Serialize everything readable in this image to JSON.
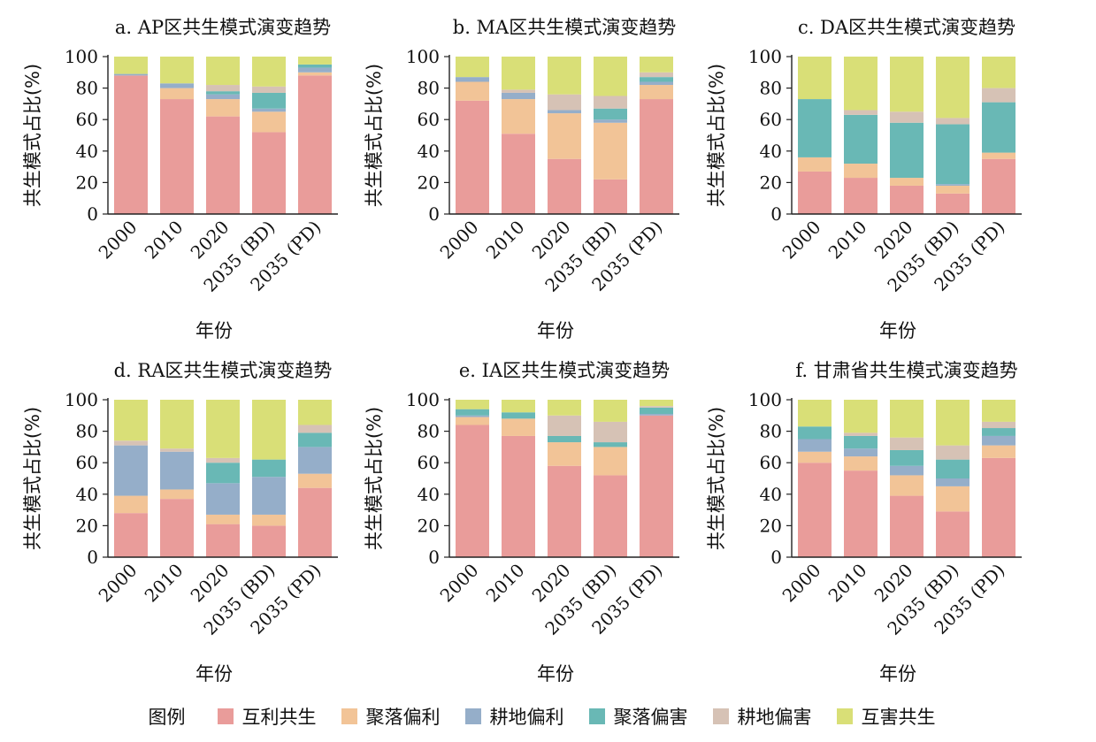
{
  "legend_title": "图例",
  "series_colors": {
    "互利共生": "#e99c9a",
    "聚落偏利": "#f2c497",
    "耕地偏利": "#95aec9",
    "聚落偏害": "#69b8b5",
    "耕地偏害": "#d6c2b5",
    "互害共生": "#d9df77"
  },
  "chart_data": [
    {
      "type": "bar",
      "stacked": true,
      "title": "a. AP区共生模式演变趋势",
      "xlabel": "年份",
      "ylabel": "共生模式占比(%)",
      "ylim": [
        0,
        100
      ],
      "yticks": [
        0,
        20,
        40,
        60,
        80,
        100
      ],
      "categories": [
        "2000",
        "2010",
        "2020",
        "2035 (BD)",
        "2035 (PD)"
      ],
      "series": [
        {
          "name": "互利共生",
          "values": [
            88,
            73,
            62,
            52,
            88
          ]
        },
        {
          "name": "聚落偏利",
          "values": [
            0,
            7,
            11,
            13,
            2
          ]
        },
        {
          "name": "耕地偏利",
          "values": [
            1,
            3,
            3,
            2,
            3
          ]
        },
        {
          "name": "聚落偏害",
          "values": [
            0,
            0,
            2,
            10,
            2
          ]
        },
        {
          "name": "耕地偏害",
          "values": [
            0,
            0,
            4,
            4,
            0
          ]
        },
        {
          "name": "互害共生",
          "values": [
            11,
            17,
            18,
            19,
            5
          ]
        }
      ]
    },
    {
      "type": "bar",
      "stacked": true,
      "title": "b. MA区共生模式演变趋势",
      "xlabel": "年份",
      "ylabel": "共生模式占比(%)",
      "ylim": [
        0,
        100
      ],
      "yticks": [
        0,
        20,
        40,
        60,
        80,
        100
      ],
      "categories": [
        "2000",
        "2010",
        "2020",
        "2035 (BD)",
        "2035 (PD)"
      ],
      "series": [
        {
          "name": "互利共生",
          "values": [
            72,
            51,
            35,
            22,
            73
          ]
        },
        {
          "name": "聚落偏利",
          "values": [
            12,
            22,
            29,
            36,
            9
          ]
        },
        {
          "name": "耕地偏利",
          "values": [
            3,
            4,
            2,
            2,
            2
          ]
        },
        {
          "name": "聚落偏害",
          "values": [
            0,
            0,
            0,
            7,
            3
          ]
        },
        {
          "name": "耕地偏害",
          "values": [
            0,
            2,
            10,
            8,
            3
          ]
        },
        {
          "name": "互害共生",
          "values": [
            13,
            21,
            24,
            25,
            10
          ]
        }
      ]
    },
    {
      "type": "bar",
      "stacked": true,
      "title": "c. DA区共生模式演变趋势",
      "xlabel": "年份",
      "ylabel": "共生模式占比(%)",
      "ylim": [
        0,
        100
      ],
      "yticks": [
        0,
        20,
        40,
        60,
        80,
        100
      ],
      "categories": [
        "2000",
        "2010",
        "2020",
        "2035 (BD)",
        "2035 (PD)"
      ],
      "series": [
        {
          "name": "互利共生",
          "values": [
            27,
            23,
            18,
            13,
            35
          ]
        },
        {
          "name": "聚落偏利",
          "values": [
            9,
            9,
            5,
            5,
            4
          ]
        },
        {
          "name": "耕地偏利",
          "values": [
            0,
            0,
            0,
            1,
            0
          ]
        },
        {
          "name": "聚落偏害",
          "values": [
            37,
            31,
            35,
            38,
            32
          ]
        },
        {
          "name": "耕地偏害",
          "values": [
            0,
            3,
            7,
            4,
            9
          ]
        },
        {
          "name": "互害共生",
          "values": [
            27,
            34,
            35,
            39,
            20
          ]
        }
      ]
    },
    {
      "type": "bar",
      "stacked": true,
      "title": "d. RA区共生模式演变趋势",
      "xlabel": "年份",
      "ylabel": "共生模式占比(%)",
      "ylim": [
        0,
        100
      ],
      "yticks": [
        0,
        20,
        40,
        60,
        80,
        100
      ],
      "categories": [
        "2000",
        "2010",
        "2020",
        "2035 (BD)",
        "2035 (PD)"
      ],
      "series": [
        {
          "name": "互利共生",
          "values": [
            28,
            37,
            21,
            20,
            44
          ]
        },
        {
          "name": "聚落偏利",
          "values": [
            11,
            6,
            6,
            7,
            9
          ]
        },
        {
          "name": "耕地偏利",
          "values": [
            32,
            24,
            20,
            24,
            17
          ]
        },
        {
          "name": "聚落偏害",
          "values": [
            0,
            0,
            13,
            11,
            9
          ]
        },
        {
          "name": "耕地偏害",
          "values": [
            3,
            2,
            3,
            0,
            5
          ]
        },
        {
          "name": "互害共生",
          "values": [
            26,
            31,
            37,
            38,
            16
          ]
        }
      ]
    },
    {
      "type": "bar",
      "stacked": true,
      "title": "e. IA区共生模式演变趋势",
      "xlabel": "年份",
      "ylabel": "共生模式占比(%)",
      "ylim": [
        0,
        100
      ],
      "yticks": [
        0,
        20,
        40,
        60,
        80,
        100
      ],
      "categories": [
        "2000",
        "2010",
        "2020",
        "2035 (BD)",
        "2035 (PD)"
      ],
      "series": [
        {
          "name": "互利共生",
          "values": [
            84,
            77,
            58,
            52,
            90
          ]
        },
        {
          "name": "聚落偏利",
          "values": [
            5,
            11,
            15,
            18,
            0
          ]
        },
        {
          "name": "耕地偏利",
          "values": [
            1,
            0,
            0,
            0,
            1
          ]
        },
        {
          "name": "聚落偏害",
          "values": [
            4,
            4,
            4,
            3,
            4
          ]
        },
        {
          "name": "耕地偏害",
          "values": [
            0,
            0,
            13,
            13,
            1
          ]
        },
        {
          "name": "互害共生",
          "values": [
            6,
            8,
            10,
            14,
            4
          ]
        }
      ]
    },
    {
      "type": "bar",
      "stacked": true,
      "title": "f. 甘肃省共生模式演变趋势",
      "xlabel": "年份",
      "ylabel": "共生模式占比(%)",
      "ylim": [
        0,
        100
      ],
      "yticks": [
        0,
        20,
        40,
        60,
        80,
        100
      ],
      "categories": [
        "2000",
        "2010",
        "2020",
        "2035 (BD)",
        "2035 (PD)"
      ],
      "series": [
        {
          "name": "互利共生",
          "values": [
            60,
            55,
            39,
            29,
            63
          ]
        },
        {
          "name": "聚落偏利",
          "values": [
            7,
            9,
            13,
            16,
            8
          ]
        },
        {
          "name": "耕地偏利",
          "values": [
            8,
            5,
            6,
            5,
            6
          ]
        },
        {
          "name": "聚落偏害",
          "values": [
            8,
            8,
            10,
            12,
            5
          ]
        },
        {
          "name": "耕地偏害",
          "values": [
            0,
            2,
            8,
            9,
            4
          ]
        },
        {
          "name": "互害共生",
          "values": [
            17,
            21,
            24,
            29,
            14
          ]
        }
      ]
    }
  ]
}
